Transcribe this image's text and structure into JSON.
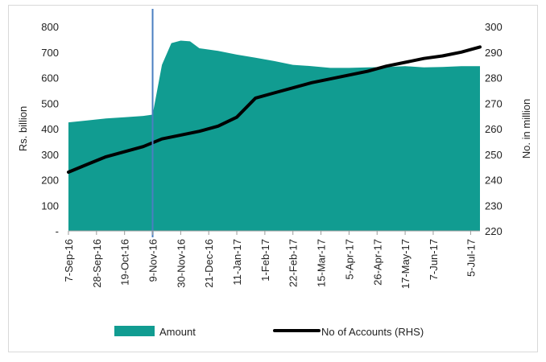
{
  "chart_data": {
    "type": "area+line",
    "title": "",
    "left_axis": {
      "label": "Rs. billion",
      "range": [
        0,
        800
      ],
      "ticks": [
        "-",
        "100",
        "200",
        "300",
        "400",
        "500",
        "600",
        "700",
        "800"
      ]
    },
    "right_axis": {
      "label": "No. in million",
      "range": [
        220,
        300
      ],
      "ticks": [
        "220",
        "230",
        "240",
        "250",
        "260",
        "270",
        "280",
        "290",
        "300"
      ]
    },
    "x_labels": [
      "7-Sep-16",
      "28-Sep-16",
      "19-Oct-16",
      "9-Nov-16",
      "30-Nov-16",
      "21-Dec-16",
      "11-Jan-17",
      "1-Feb-17",
      "22-Feb-17",
      "15-Mar-17",
      "5-Apr-17",
      "26-Apr-17",
      "17-May-17",
      "7-Jun-17",
      "5-Jul-17"
    ],
    "x_dates": [
      "2016-09-07",
      "2016-09-28",
      "2016-10-19",
      "2016-11-09",
      "2016-11-30",
      "2016-12-21",
      "2017-01-11",
      "2017-02-01",
      "2017-02-22",
      "2017-03-15",
      "2017-04-05",
      "2017-04-26",
      "2017-05-17",
      "2017-06-07",
      "2017-07-05"
    ],
    "x_range": [
      "2016-09-07",
      "2017-07-12"
    ],
    "marker_date": "2016-11-09",
    "grid": false,
    "legend_position": "bottom",
    "series": [
      {
        "name": "Amount",
        "axis": "left",
        "color": "#119c91",
        "points": [
          [
            "2016-09-07",
            425
          ],
          [
            "2016-09-21",
            432
          ],
          [
            "2016-10-05",
            440
          ],
          [
            "2016-10-19",
            445
          ],
          [
            "2016-11-02",
            450
          ],
          [
            "2016-11-09",
            455
          ],
          [
            "2016-11-16",
            650
          ],
          [
            "2016-11-23",
            735
          ],
          [
            "2016-11-30",
            745
          ],
          [
            "2016-12-07",
            742
          ],
          [
            "2016-12-14",
            715
          ],
          [
            "2016-12-28",
            705
          ],
          [
            "2017-01-11",
            690
          ],
          [
            "2017-01-25",
            678
          ],
          [
            "2017-02-08",
            665
          ],
          [
            "2017-02-22",
            650
          ],
          [
            "2017-03-08",
            645
          ],
          [
            "2017-03-22",
            638
          ],
          [
            "2017-04-05",
            638
          ],
          [
            "2017-04-19",
            640
          ],
          [
            "2017-05-03",
            642
          ],
          [
            "2017-05-17",
            645
          ],
          [
            "2017-05-31",
            640
          ],
          [
            "2017-06-14",
            642
          ],
          [
            "2017-06-28",
            645
          ],
          [
            "2017-07-12",
            645
          ]
        ]
      },
      {
        "name": "No of Accounts (RHS)",
        "axis": "right",
        "color": "#000000",
        "points": [
          [
            "2016-09-07",
            243
          ],
          [
            "2016-09-21",
            246
          ],
          [
            "2016-10-05",
            249
          ],
          [
            "2016-10-19",
            251
          ],
          [
            "2016-11-02",
            253
          ],
          [
            "2016-11-16",
            256
          ],
          [
            "2016-11-30",
            257.5
          ],
          [
            "2016-12-14",
            259
          ],
          [
            "2016-12-28",
            261
          ],
          [
            "2017-01-11",
            264.5
          ],
          [
            "2017-01-25",
            272
          ],
          [
            "2017-02-08",
            274
          ],
          [
            "2017-02-22",
            276
          ],
          [
            "2017-03-08",
            278
          ],
          [
            "2017-03-22",
            279.5
          ],
          [
            "2017-04-05",
            281
          ],
          [
            "2017-04-19",
            282.5
          ],
          [
            "2017-05-03",
            284.5
          ],
          [
            "2017-05-17",
            286
          ],
          [
            "2017-05-31",
            287.5
          ],
          [
            "2017-06-14",
            288.5
          ],
          [
            "2017-06-28",
            290
          ],
          [
            "2017-07-12",
            292
          ]
        ]
      }
    ]
  }
}
